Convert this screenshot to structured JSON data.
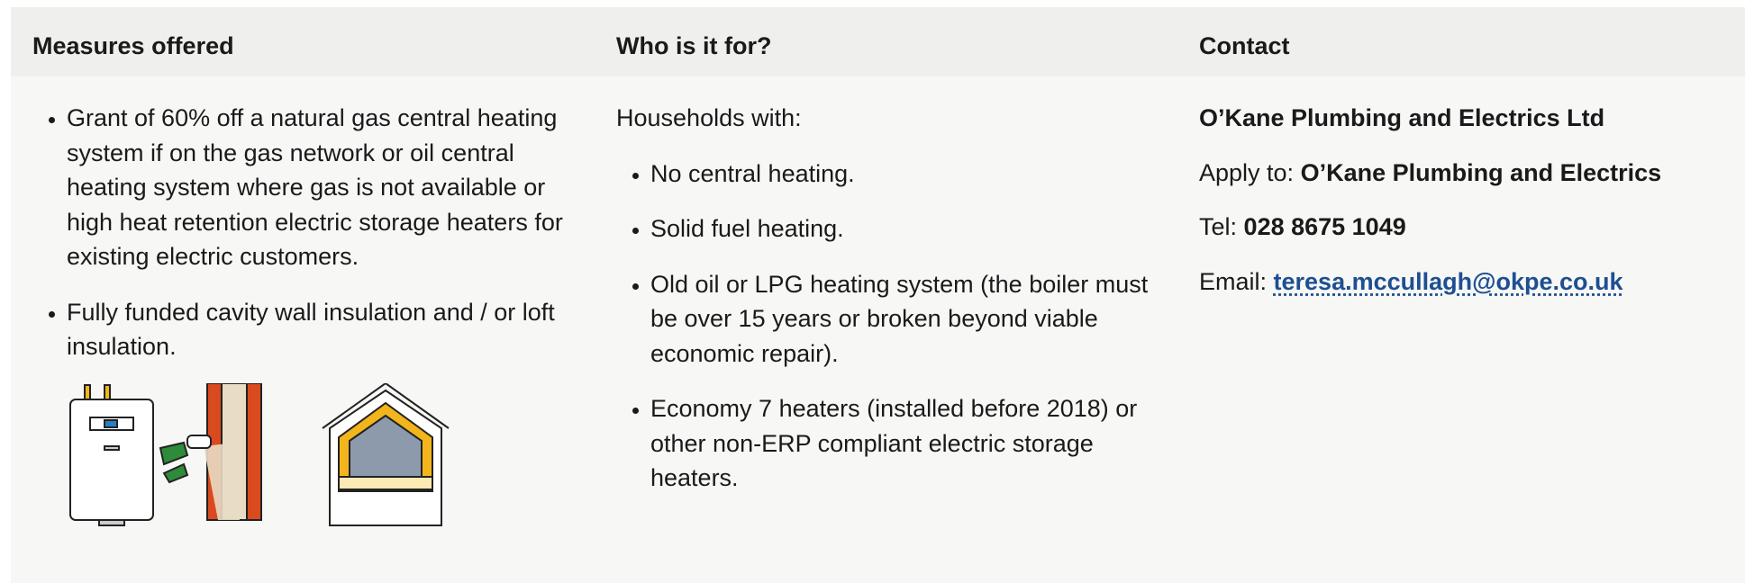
{
  "table": {
    "headers": [
      "Measures offered",
      "Who is it for?",
      "Contact"
    ],
    "measures": [
      "Grant of 60% off a natural gas central heating system if on the gas network or oil central heating system where gas is not available or high heat retention electric storage heaters for existing electric customers.",
      "Fully funded cavity wall insulation and / or loft insulation."
    ],
    "who": {
      "intro": "Households with:",
      "items": [
        "No central heating.",
        "Solid fuel heating.",
        "Old oil or LPG heating system (the boiler must be over 15 years or broken beyond viable economic repair).",
        "Economy 7 heaters (installed before 2018) or other non-ERP compliant electric storage heaters."
      ]
    },
    "contact": {
      "company": "O’Kane Plumbing and Electrics Ltd",
      "apply_label": "Apply to:",
      "apply_value": "O’Kane Plumbing and Electrics",
      "tel_label": "Tel:",
      "tel_value": "028 8675 1049",
      "email_label": "Email:",
      "email_value": "teresa.mccullagh@okpe.co.uk"
    }
  }
}
